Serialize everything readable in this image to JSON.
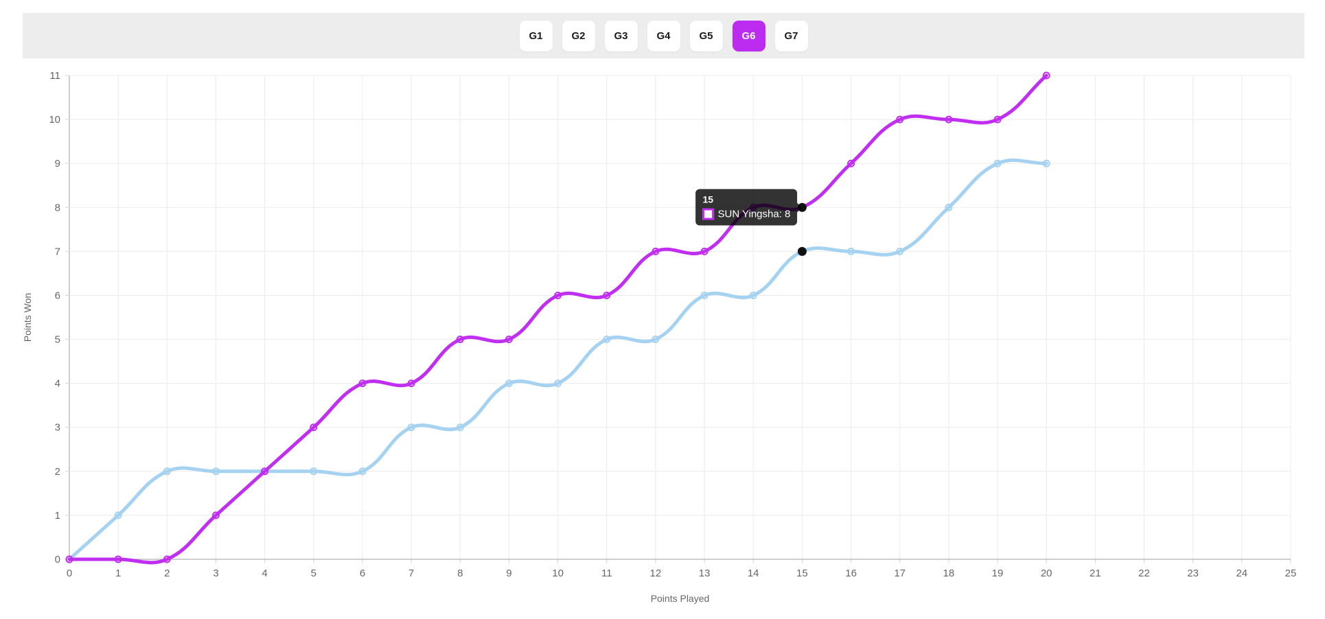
{
  "toolbar": {
    "bar_background": "#ededed",
    "active_color": "#bb2bf0",
    "tabs": [
      {
        "label": "G1",
        "active": false
      },
      {
        "label": "G2",
        "active": false
      },
      {
        "label": "G3",
        "active": false
      },
      {
        "label": "G4",
        "active": false
      },
      {
        "label": "G5",
        "active": false
      },
      {
        "label": "G6",
        "active": true
      },
      {
        "label": "G7",
        "active": false
      }
    ]
  },
  "chart_data": {
    "type": "line",
    "xlabel": "Points Played",
    "ylabel": "Points Won",
    "xlim": [
      0,
      25
    ],
    "ylim": [
      0,
      11
    ],
    "x_ticks": [
      0,
      1,
      2,
      3,
      4,
      5,
      6,
      7,
      8,
      9,
      10,
      11,
      12,
      13,
      14,
      15,
      16,
      17,
      18,
      19,
      20,
      21,
      22,
      23,
      24,
      25
    ],
    "y_ticks": [
      0,
      1,
      2,
      3,
      4,
      5,
      6,
      7,
      8,
      9,
      10,
      11
    ],
    "grid": true,
    "x": [
      0,
      1,
      2,
      3,
      4,
      5,
      6,
      7,
      8,
      9,
      10,
      11,
      12,
      13,
      14,
      15,
      16,
      17,
      18,
      19,
      20
    ],
    "series": [
      {
        "name": "SUN Yingsha",
        "color": "#c02ff0",
        "values": [
          0,
          0,
          0,
          1,
          2,
          3,
          4,
          4,
          5,
          5,
          6,
          6,
          7,
          7,
          8,
          8,
          9,
          10,
          10,
          10,
          11
        ]
      },
      {
        "name": "",
        "color": "#a5d2f1",
        "values": [
          0,
          1,
          2,
          2,
          2,
          2,
          2,
          3,
          3,
          4,
          4,
          5,
          5,
          6,
          6,
          7,
          7,
          7,
          8,
          9,
          9
        ]
      }
    ],
    "highlight": {
      "x": 15,
      "points": [
        {
          "series_index": 0,
          "value": 8
        },
        {
          "series_index": 1,
          "value": 7
        }
      ],
      "dot_color": "#111111"
    },
    "tooltip": {
      "title": "15",
      "label": "SUN Yingsha: 8",
      "swatch_fill": "#ffffff",
      "swatch_border": "#c02ff0",
      "background": "rgba(0,0,0,0.8)"
    },
    "colors": {
      "gridline": "#ebebeb",
      "axis_line": "#9e9e9e",
      "tick_mark": "#d4d4d4"
    }
  }
}
